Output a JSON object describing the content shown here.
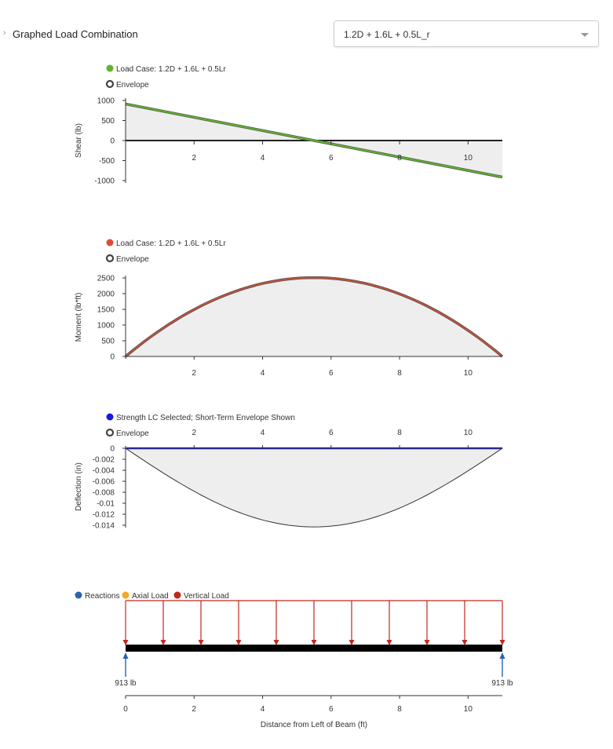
{
  "header": {
    "chevron": "›",
    "label": "Graphed Load Combination",
    "select_value": "1.2D + 1.6L + 0.5L_r"
  },
  "chart_data": [
    {
      "type": "line",
      "id": "shear",
      "ylabel": "Shear (lb)",
      "ylim": [
        -1000,
        1000
      ],
      "yticks": [
        1000,
        500,
        0,
        -500,
        -1000
      ],
      "ytick_labels": [
        "1000",
        "500",
        "0",
        "-500",
        "-1000"
      ],
      "xlim": [
        0,
        11
      ],
      "xticks": [
        2,
        4,
        6,
        8,
        10
      ],
      "xtick_labels": [
        "2",
        "4",
        "6",
        "8",
        "10"
      ],
      "legend": [
        {
          "label": "Load Case: 1.2D + 1.6L + 0.5Lr",
          "color": "#5db32a",
          "kind": "dot"
        },
        {
          "label": "Envelope",
          "color": "#444444",
          "kind": "ring"
        }
      ],
      "series": [
        {
          "name": "Load Case: 1.2D + 1.6L + 0.5Lr",
          "color": "#5db32a",
          "x": [
            0,
            11
          ],
          "y": [
            913,
            -913
          ]
        }
      ],
      "envelope": {
        "x": [
          0,
          11
        ],
        "y": [
          913,
          -913
        ]
      }
    },
    {
      "type": "line",
      "id": "moment",
      "ylabel": "Moment (lb*ft)",
      "ylim": [
        0,
        2500
      ],
      "yticks": [
        2500,
        2000,
        1500,
        1000,
        500,
        0
      ],
      "ytick_labels": [
        "2500",
        "2000",
        "1500",
        "1000",
        "500",
        "0"
      ],
      "xlim": [
        0,
        11
      ],
      "xticks": [
        2,
        4,
        6,
        8,
        10
      ],
      "xtick_labels": [
        "2",
        "4",
        "6",
        "8",
        "10"
      ],
      "legend": [
        {
          "label": "Load Case: 1.2D + 1.6L + 0.5Lr",
          "color": "#e24a33",
          "kind": "dot"
        },
        {
          "label": "Envelope",
          "color": "#444444",
          "kind": "ring"
        }
      ],
      "series": [
        {
          "name": "Load Case: 1.2D + 1.6L + 0.5Lr",
          "color": "#c0503a",
          "shape": "parabola",
          "span": 11,
          "peak": 2510
        }
      ]
    },
    {
      "type": "line",
      "id": "deflection",
      "ylabel": "Deflection (in)",
      "ylim": [
        -0.014,
        0
      ],
      "yticks": [
        0,
        -0.002,
        -0.004,
        -0.006,
        -0.008,
        -0.01,
        -0.012,
        -0.014
      ],
      "ytick_labels": [
        "0",
        "-0.002",
        "-0.004",
        "-0.006",
        "-0.008",
        "-0.01",
        "-0.012",
        "-0.014"
      ],
      "xlim": [
        0,
        11
      ],
      "xticks": [
        2,
        4,
        6,
        8,
        10
      ],
      "xtick_labels": [
        "2",
        "4",
        "6",
        "8",
        "10"
      ],
      "legend": [
        {
          "label": "Strength LC Selected; Short-Term Envelope Shown",
          "color": "#1a1adc",
          "kind": "dot"
        },
        {
          "label": "Envelope",
          "color": "#444444",
          "kind": "ring"
        }
      ],
      "series": [
        {
          "name": "Strength LC Selected",
          "color": "#2a2a8c",
          "x": [
            0,
            11
          ],
          "y": [
            0,
            0
          ]
        }
      ],
      "envelope": {
        "shape": "deflection",
        "span": 11,
        "max": -0.0143
      }
    },
    {
      "type": "diagram",
      "id": "loads",
      "legend": [
        {
          "label": "Reactions",
          "color": "#2a63b0"
        },
        {
          "label": "Axial Load",
          "color": "#f5a623"
        },
        {
          "label": "Vertical Load",
          "color": "#c0281e"
        }
      ],
      "span": 11,
      "load_arrow_x": [
        0,
        1.1,
        2.2,
        3.3,
        4.4,
        5.5,
        6.6,
        7.7,
        8.8,
        9.9,
        11
      ],
      "reactions": [
        {
          "x": 0,
          "label": "913 lb"
        },
        {
          "x": 11,
          "label": "913 lb"
        }
      ],
      "xticks": [
        0,
        2,
        4,
        6,
        8,
        10
      ],
      "xtick_labels": [
        "0",
        "2",
        "4",
        "6",
        "8",
        "10"
      ],
      "xlabel": "Distance from Left of Beam (ft)"
    }
  ]
}
